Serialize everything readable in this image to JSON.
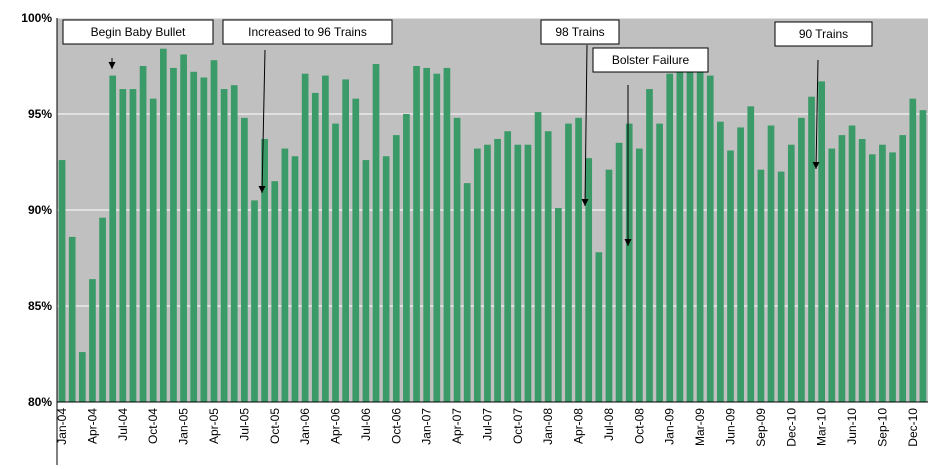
{
  "chart_data": {
    "type": "bar",
    "categories": [
      "Jan-04",
      null,
      null,
      "Apr-04",
      null,
      null,
      "Jul-04",
      null,
      null,
      "Oct-04",
      null,
      null,
      "Jan-05",
      null,
      null,
      "Apr-05",
      null,
      null,
      "Jul-05",
      null,
      null,
      "Oct-05",
      null,
      null,
      "Jan-06",
      null,
      null,
      "Apr-06",
      null,
      null,
      "Jul-06",
      null,
      null,
      "Oct-06",
      null,
      null,
      "Jan-07",
      null,
      null,
      "Apr-07",
      null,
      null,
      "Jul-07",
      null,
      null,
      "Oct-07",
      null,
      null,
      "Jan-08",
      null,
      null,
      "Apr-08",
      null,
      null,
      "Jul-08",
      null,
      null,
      "Oct-08",
      null,
      null,
      "Jan-09",
      null,
      null,
      "Mar-09",
      null,
      null,
      "Jun-09",
      null,
      null,
      "Sep-09",
      null,
      null,
      "Dec-10",
      null,
      null,
      "Mar-10",
      null,
      null,
      "Jun-10",
      null,
      null,
      "Sep-10",
      null,
      null,
      "Dec-10",
      null
    ],
    "values": [
      92.6,
      88.6,
      82.6,
      86.4,
      89.6,
      97.0,
      96.3,
      96.3,
      97.5,
      95.8,
      98.4,
      97.4,
      98.1,
      97.2,
      96.9,
      97.8,
      96.3,
      96.5,
      94.8,
      90.5,
      93.7,
      91.5,
      93.2,
      92.8,
      97.1,
      96.1,
      97.0,
      94.5,
      96.8,
      95.8,
      92.6,
      97.6,
      92.8,
      93.9,
      95.0,
      97.5,
      97.4,
      97.1,
      97.4,
      94.8,
      91.4,
      93.2,
      93.4,
      93.7,
      94.1,
      93.4,
      93.4,
      95.1,
      94.1,
      90.1,
      94.5,
      94.8,
      92.7,
      87.8,
      92.1,
      93.5,
      94.5,
      93.2,
      96.3,
      94.5,
      97.1,
      97.2,
      97.2,
      98.1,
      97.0,
      94.6,
      93.1,
      94.3,
      95.4,
      92.1,
      94.4,
      92.0,
      93.4,
      94.8,
      95.9,
      96.7,
      93.2,
      93.9,
      94.4,
      93.7,
      92.9,
      93.4,
      93.0,
      93.9,
      95.8,
      95.2
    ],
    "color": "#3a9a68",
    "ylim": [
      80,
      100
    ],
    "yticks": [
      {
        "value": 80,
        "label": "80%"
      },
      {
        "value": 85,
        "label": "85%"
      },
      {
        "value": 90,
        "label": "90%"
      },
      {
        "value": 95,
        "label": "95%"
      },
      {
        "value": 100,
        "label": "100%"
      }
    ],
    "grid": true,
    "annotations": [
      "Begin Baby Bullet",
      "Increased to 96 Trains",
      "98 Trains",
      "Bolster Failure",
      "90 Trains"
    ]
  }
}
